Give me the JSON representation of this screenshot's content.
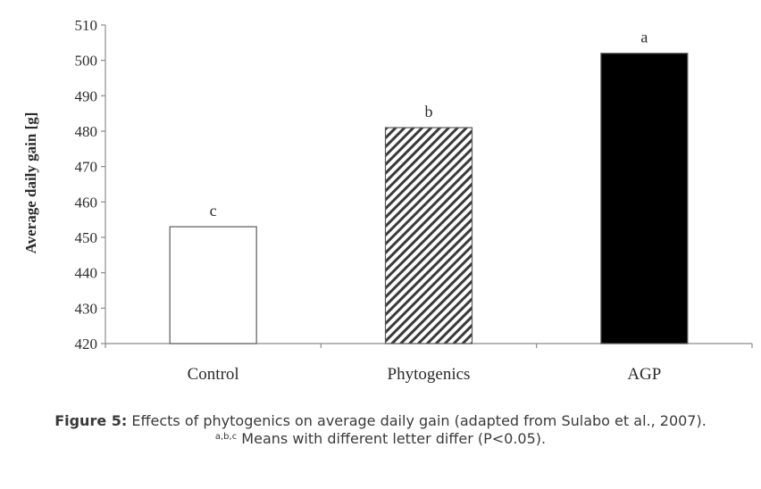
{
  "chart_data": {
    "type": "bar",
    "title": "",
    "xlabel": "",
    "ylabel": "Average daily gain [g]",
    "ylim": [
      420,
      510
    ],
    "yticks": [
      420,
      430,
      440,
      450,
      460,
      470,
      480,
      490,
      500,
      510
    ],
    "categories": [
      "Control",
      "Phytogenics",
      "AGP"
    ],
    "values": [
      453,
      481,
      502
    ],
    "significance_letters": [
      "c",
      "b",
      "a"
    ],
    "bar_fills": [
      "white",
      "hatched",
      "black"
    ],
    "grid": false,
    "legend": "none"
  },
  "caption": {
    "label": "Figure 5:",
    "text": " Effects of phytogenics on average daily gain (adapted from Sulabo et al., 2007).",
    "note_superscript": "a,b,c",
    "note_text": " Means with different letter differ (P<0.05)."
  },
  "colors": {
    "axis": "#8c8c8c",
    "text": "#2b2b2b",
    "bar_outline": "#5a5a5a",
    "black_bar": "#000000"
  }
}
